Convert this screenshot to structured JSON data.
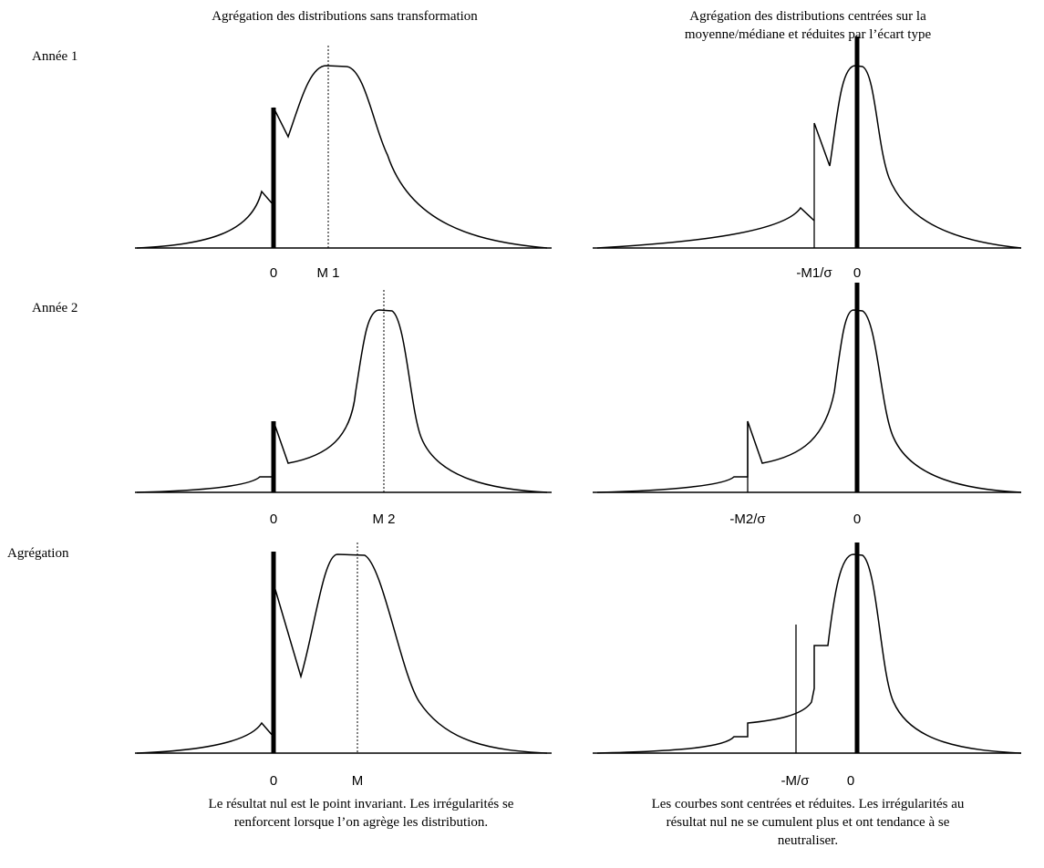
{
  "columns": [
    {
      "title": [
        "Agrégation des distributions sans transformation"
      ]
    },
    {
      "title": [
        "Agrégation des distributions centrées sur la",
        "moyenne/médiane et réduites par l’écart type"
      ]
    }
  ],
  "rows": [
    {
      "label": "Année 1",
      "panels": [
        {
          "axis_labels": [
            "0",
            "M 1"
          ]
        },
        {
          "axis_labels": [
            "-M1/σ",
            "0"
          ]
        }
      ]
    },
    {
      "label": "Année 2",
      "panels": [
        {
          "axis_labels": [
            "0",
            "M 2"
          ]
        },
        {
          "axis_labels": [
            "-M2/σ",
            "0"
          ]
        }
      ]
    },
    {
      "label": "Agrégation",
      "panels": [
        {
          "axis_labels": [
            "0",
            "M"
          ]
        },
        {
          "axis_labels": [
            "-M/σ",
            "0"
          ]
        }
      ]
    }
  ],
  "captions": [
    [
      "Le résultat nul est le point invariant. Les irrégularités se",
      "renforcent lorsque l’on agrège les distribution."
    ],
    [
      "Les courbes sont centrées et réduites. Les irrégularités au",
      "résultat nul ne se cumulent plus et ont tendance à se",
      "neutraliser."
    ]
  ]
}
